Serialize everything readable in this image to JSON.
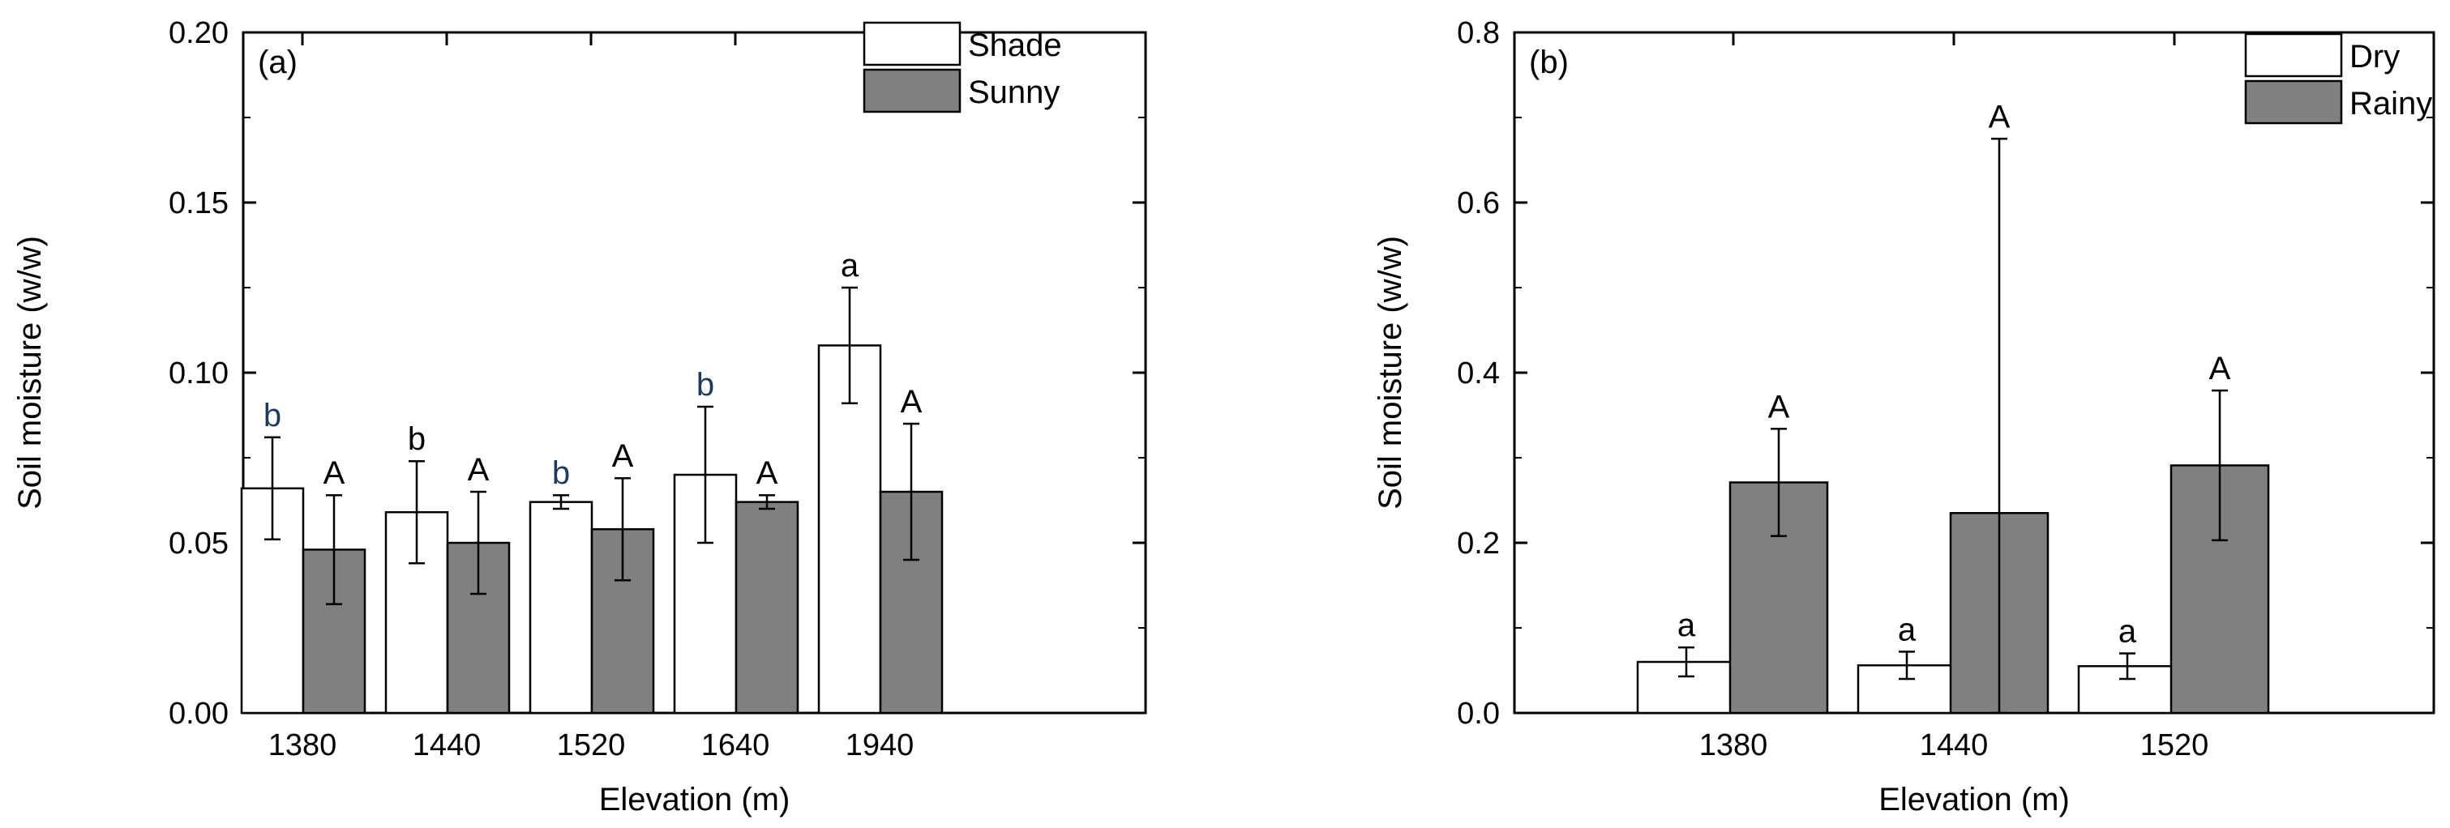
{
  "chart_data": [
    {
      "type": "bar",
      "panel_label": "(a)",
      "xlabel": "Elevation (m)",
      "ylabel": "Soil moisture (w/w)",
      "ylim": [
        0,
        0.2
      ],
      "yticks": [
        "0.00",
        "0.05",
        "0.10",
        "0.15",
        "0.20"
      ],
      "yticks_values": [
        0,
        0.05,
        0.1,
        0.15,
        0.2
      ],
      "categories": [
        "1380",
        "1440",
        "1520",
        "1640",
        "1940"
      ],
      "legend_position": "top-right",
      "series": [
        {
          "name": "Shade",
          "color": "#ffffff",
          "values": [
            0.066,
            0.059,
            0.062,
            0.07,
            0.108
          ],
          "errors": [
            0.015,
            0.015,
            0.002,
            0.02,
            0.017
          ],
          "letters": [
            "b",
            "b",
            "b",
            "b",
            "a"
          ],
          "letter_colors": [
            "#1f3a5a",
            "#000000",
            "#1f3a5a",
            "#1f3a5a",
            "#000000"
          ]
        },
        {
          "name": "Sunny",
          "color": "#808080",
          "values": [
            0.048,
            0.05,
            0.054,
            0.062,
            0.065
          ],
          "errors": [
            0.016,
            0.015,
            0.015,
            0.002,
            0.02
          ],
          "letters": [
            "A",
            "A",
            "A",
            "A",
            "A"
          ],
          "letter_colors": [
            "#000000",
            "#000000",
            "#000000",
            "#000000",
            "#000000"
          ]
        }
      ]
    },
    {
      "type": "bar",
      "panel_label": "(b)",
      "xlabel": "Elevation (m)",
      "ylabel": "Soil moisture (w/w)",
      "ylim": [
        0,
        0.8
      ],
      "yticks": [
        "0.0",
        "0.2",
        "0.4",
        "0.6",
        "0.8"
      ],
      "yticks_values": [
        0,
        0.2,
        0.4,
        0.6,
        0.8
      ],
      "categories": [
        "1380",
        "1440",
        "1520"
      ],
      "legend_position": "top-right",
      "series": [
        {
          "name": "Dry",
          "color": "#ffffff",
          "values": [
            0.06,
            0.056,
            0.055
          ],
          "errors": [
            0.017,
            0.016,
            0.015
          ],
          "letters": [
            "a",
            "a",
            "a"
          ],
          "letter_colors": [
            "#000000",
            "#000000",
            "#000000"
          ]
        },
        {
          "name": "Rainy",
          "color": "#808080",
          "values": [
            0.271,
            0.235,
            0.291
          ],
          "errors": [
            0.063,
            0.44,
            0.088
          ],
          "letters": [
            "A",
            "A",
            "A"
          ],
          "letter_colors": [
            "#000000",
            "#000000",
            "#000000"
          ]
        }
      ]
    }
  ]
}
